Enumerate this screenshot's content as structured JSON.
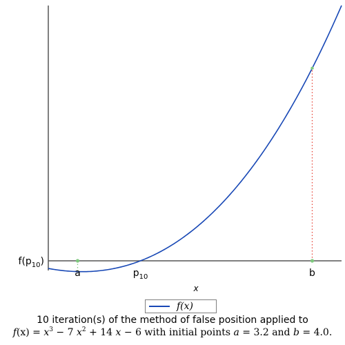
{
  "chart_data": {
    "type": "line",
    "function": "x^3 - 7x^2 + 14x - 6",
    "series": [
      {
        "name": "f(x)",
        "x_range": [
          3.1,
          4.1
        ],
        "color": "#1747b5"
      }
    ],
    "xlim": [
      3.1,
      4.1
    ],
    "ylim": [
      -0.06,
      1.0
    ],
    "xlabel": "x",
    "ylabel": "",
    "grid": false,
    "legend_position": "bottom",
    "initial_points": {
      "a": 3.2,
      "b": 4.0
    },
    "iterate": {
      "x": 3.4142,
      "y": 0.0
    },
    "markers": [
      {
        "label": "a",
        "x": 3.2,
        "color": "#7ec87e"
      },
      {
        "label": "b",
        "x": 4.0,
        "color": "#7ec87e"
      }
    ],
    "x_tick_labels": [
      {
        "id": "a",
        "text": "a",
        "x": 3.2
      },
      {
        "id": "p",
        "text": "p",
        "sub": "10",
        "x": 3.4142
      },
      {
        "id": "b",
        "text": "b",
        "x": 4.0
      }
    ],
    "y_tick_label": {
      "text": "f(p",
      "sub": "10",
      "close": ")"
    }
  },
  "legend": {
    "label": "f(x)"
  },
  "caption": {
    "line1": "10 iteration(s) of the method of false position applied to",
    "func_lhs": "f",
    "func_arg": "(x) = ",
    "x1": "x",
    "exp3": "3",
    "mid1": " − 7 ",
    "x2": "x",
    "exp2": "2",
    "mid2": " + 14 ",
    "x3": "x",
    "tail1": " − 6 with initial points ",
    "a_sym": "a",
    "a_val": " = 3.2 and ",
    "b_sym": "b",
    "b_val": " = 4.0."
  },
  "colors": {
    "curve": "#1747b5",
    "axis": "#555555",
    "marker": "#7ec87e",
    "secant": "#e8463a"
  }
}
